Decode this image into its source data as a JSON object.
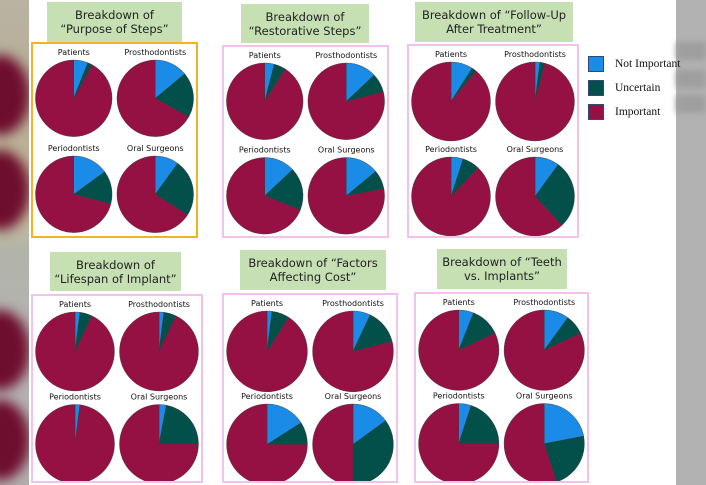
{
  "colors": {
    "not_important": "#1a8be6",
    "uncertain": "#034f4a",
    "important": "#951143"
  },
  "legend": [
    {
      "label": "Not Important",
      "key": "not_important"
    },
    {
      "label": "Uncertain",
      "key": "uncertain"
    },
    {
      "label": "Important",
      "key": "important"
    }
  ],
  "chart_data": [
    {
      "type": "pie",
      "title": "Breakdown of\n“Purpose of Steps”",
      "selected": true,
      "pies": [
        {
          "label": "Patients",
          "values": {
            "not_important": 6,
            "uncertain": 2,
            "important": 92
          }
        },
        {
          "label": "Prosthodontists",
          "values": {
            "not_important": 14,
            "uncertain": 19,
            "important": 67
          }
        },
        {
          "label": "Periodontists",
          "values": {
            "not_important": 15,
            "uncertain": 14,
            "important": 71
          }
        },
        {
          "label": "Oral Surgeons",
          "values": {
            "not_important": 10,
            "uncertain": 24,
            "important": 66
          }
        }
      ]
    },
    {
      "type": "pie",
      "title": "Breakdown of\n“Restorative Steps”",
      "selected": false,
      "pies": [
        {
          "label": "Patients",
          "values": {
            "not_important": 4,
            "uncertain": 5,
            "important": 91
          }
        },
        {
          "label": "Prosthodontists",
          "values": {
            "not_important": 13,
            "uncertain": 8,
            "important": 79
          }
        },
        {
          "label": "Periodontists",
          "values": {
            "not_important": 13,
            "uncertain": 18,
            "important": 69
          }
        },
        {
          "label": "Oral Surgeons",
          "values": {
            "not_important": 14,
            "uncertain": 8,
            "important": 78
          }
        }
      ]
    },
    {
      "type": "pie",
      "title": "Breakdown of “Follow-Up\nAfter Treatment”",
      "selected": false,
      "pies": [
        {
          "label": "Patients",
          "values": {
            "not_important": 9,
            "uncertain": 2,
            "important": 89
          }
        },
        {
          "label": "Prosthodontists",
          "values": {
            "not_important": 2,
            "uncertain": 2,
            "important": 96
          }
        },
        {
          "label": "Periodontists",
          "values": {
            "not_important": 5,
            "uncertain": 7,
            "important": 88
          }
        },
        {
          "label": "Oral Surgeons",
          "values": {
            "not_important": 10,
            "uncertain": 28,
            "important": 62
          }
        }
      ]
    },
    {
      "type": "pie",
      "title": "Breakdown of\n“Lifespan of Implant”",
      "selected": false,
      "pies": [
        {
          "label": "Patients",
          "values": {
            "not_important": 2,
            "uncertain": 5,
            "important": 93
          }
        },
        {
          "label": "Prosthodontists",
          "values": {
            "not_important": 2,
            "uncertain": 5,
            "important": 93
          }
        },
        {
          "label": "Periodontists",
          "values": {
            "not_important": 2,
            "uncertain": 0,
            "important": 98
          }
        },
        {
          "label": "Oral Surgeons",
          "values": {
            "not_important": 3,
            "uncertain": 22,
            "important": 75
          }
        }
      ]
    },
    {
      "type": "pie",
      "title": "Breakdown of “Factors\nAffecting Cost”",
      "selected": false,
      "pies": [
        {
          "label": "Patients",
          "values": {
            "not_important": 2,
            "uncertain": 7,
            "important": 91
          }
        },
        {
          "label": "Prosthodontists",
          "values": {
            "not_important": 7,
            "uncertain": 14,
            "important": 79
          }
        },
        {
          "label": "Periodontists",
          "values": {
            "not_important": 16,
            "uncertain": 9,
            "important": 75
          }
        },
        {
          "label": "Oral Surgeons",
          "values": {
            "not_important": 15,
            "uncertain": 35,
            "important": 50
          }
        }
      ]
    },
    {
      "type": "pie",
      "title": "Breakdown of “Teeth\nvs. Implants”",
      "selected": false,
      "pies": [
        {
          "label": "Patients",
          "values": {
            "not_important": 6,
            "uncertain": 12,
            "important": 82
          }
        },
        {
          "label": "Prosthodontists",
          "values": {
            "not_important": 10,
            "uncertain": 8,
            "important": 82
          }
        },
        {
          "label": "Periodontists",
          "values": {
            "not_important": 5,
            "uncertain": 20,
            "important": 75
          }
        },
        {
          "label": "Oral Surgeons",
          "values": {
            "not_important": 22,
            "uncertain": 23,
            "important": 55
          }
        }
      ]
    }
  ]
}
